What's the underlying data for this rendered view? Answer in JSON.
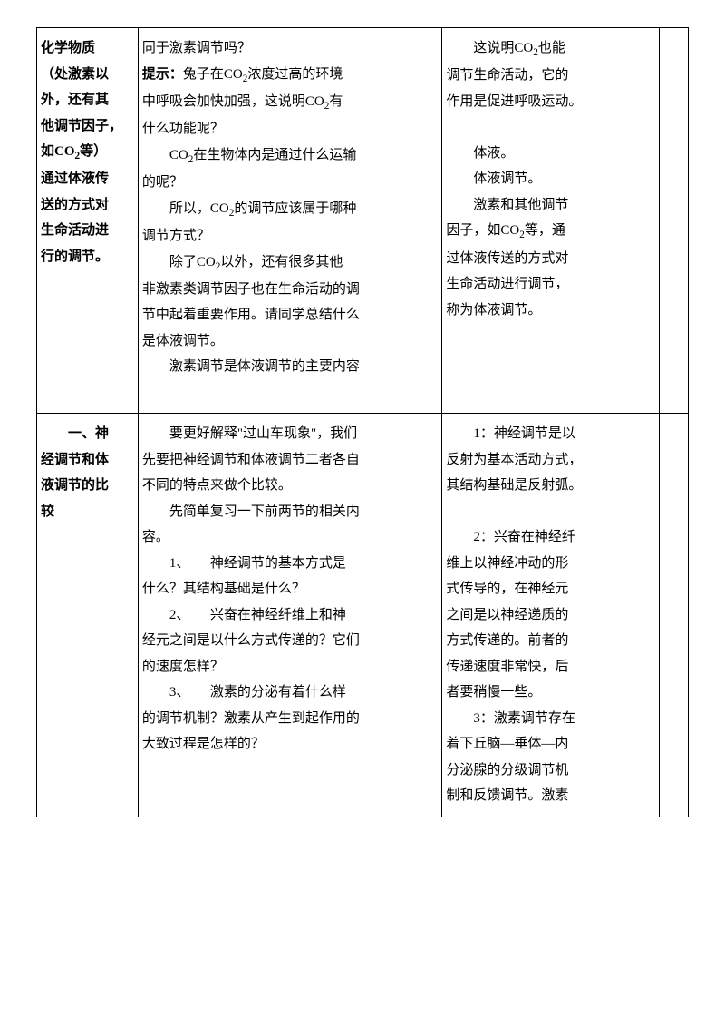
{
  "row1": {
    "col1": {
      "p1_bold": "化学物质",
      "p2_bold": "（处激素以",
      "p3_bold": "外，还有其",
      "p4_bold": "他调节因子，",
      "p5_bold_prefix": "如",
      "p5_bold_co2": "CO",
      "p5_bold_sub": "2",
      "p5_bold_suffix": "等）",
      "p6_bold": "通过体液传",
      "p7_bold": "送的方式对",
      "p8_bold": "生命活动进",
      "p9_bold": "行的调节。"
    },
    "col2": {
      "p1": "同于激素调节吗？",
      "p2_bold": "提示：",
      "p2_text_a": "兔子在",
      "p2_co2": "CO",
      "p2_sub": "2",
      "p2_text_b": "浓度过高的环境",
      "p3_text_a": "中呼吸会加快加强，这说明",
      "p3_co2": "CO",
      "p3_sub": "2",
      "p3_text_b": "有",
      "p4": "什么功能呢？",
      "p5_indent_a": "CO",
      "p5_sub": "2",
      "p5_indent_b": "在生物体内是通过什么运输",
      "p6": "的呢？",
      "p7_indent_a": "所以，",
      "p7_co2": "CO",
      "p7_sub": "2",
      "p7_indent_b": "的调节应该属于哪种",
      "p8": "调节方式？",
      "p9_indent_a": "除了",
      "p9_co2": "CO",
      "p9_sub": "2",
      "p9_indent_b": "以外，还有很多其他",
      "p10": "非激素类调节因子也在生命活动的调",
      "p11": "节中起着重要作用。请同学总结什么",
      "p12": "是体液调节。",
      "p13_indent": "激素调节是体液调节的主要内容"
    },
    "col3": {
      "p1_indent_a": "这说明",
      "p1_co2": "CO",
      "p1_sub": "2",
      "p1_indent_b": "也能",
      "p2": "调节生命活动，它的",
      "p3": "作用是促进呼吸运动。",
      "p4_blank": "",
      "p5_indent": "体液。",
      "p6_indent": "体液调节。",
      "p7_indent": "激素和其他调节",
      "p8_a": "因子，如",
      "p8_co2": "CO",
      "p8_sub": "2",
      "p8_b": "等，通",
      "p9": "过体液传送的方式对",
      "p10": "生命活动进行调节，",
      "p11": "称为体液调节。"
    }
  },
  "row2": {
    "col1": {
      "p1_bold_indent": "一、神",
      "p2_bold": "经调节和体",
      "p3_bold": "液调节的比",
      "p4_bold": "较"
    },
    "col2": {
      "p1_indent": "要更好解释\"过山车现象\"，我们",
      "p2": "先要把神经调节和体液调节二者各自",
      "p3": "不同的特点来做个比较。",
      "p4_indent": "先简单复习一下前两节的相关内",
      "p5": "容。",
      "p6": "1、　　神经调节的基本方式是",
      "p7": "什么？其结构基础是什么？",
      "p8": "2、　　兴奋在神经纤维上和神",
      "p9": "经元之间是以什么方式传递的？它们",
      "p10": "的速度怎样？",
      "p11": "3、　　激素的分泌有着什么样",
      "p12": "的调节机制？激素从产生到起作用的",
      "p13": "大致过程是怎样的？"
    },
    "col3": {
      "p1_indent": "1：神经调节是以",
      "p2": "反射为基本活动方式，",
      "p3": "其结构基础是反射弧。",
      "p4_blank": "",
      "p5_indent": "2：兴奋在神经纤",
      "p6": "维上以神经冲动的形",
      "p7": "式传导的，在神经元",
      "p8": "之间是以神经递质的",
      "p9": "方式传递的。前者的",
      "p10": "传递速度非常快，后",
      "p11": "者要稍慢一些。",
      "p12_indent": "3：激素调节存在",
      "p13": "着下丘脑—垂体—内",
      "p14": "分泌腺的分级调节机",
      "p15": "制和反馈调节。激素"
    }
  }
}
